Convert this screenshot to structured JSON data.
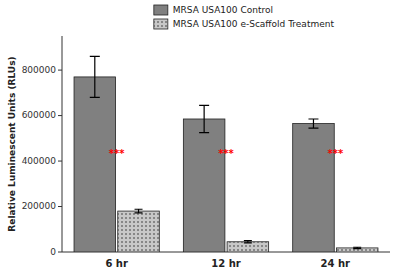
{
  "chart_data": {
    "type": "bar",
    "categories": [
      "6 hr",
      "12 hr",
      "24 hr"
    ],
    "series": [
      {
        "name": "MRSA USA100 Control",
        "color": "#808080",
        "values": [
          770000,
          585000,
          565000
        ],
        "errors": [
          90000,
          60000,
          20000
        ]
      },
      {
        "name": "MRSA USA100 e-Scaffold Treatment",
        "color": "#c8c8c8",
        "values": [
          180000,
          45000,
          18000
        ],
        "errors": [
          8000,
          5000,
          3000
        ]
      }
    ],
    "ylabel": "Relative Luminescent Units (RLUs)",
    "ylim": [
      0,
      950000
    ],
    "yticks": [
      0,
      200000,
      400000,
      600000,
      800000
    ],
    "annotations": [
      {
        "text": "***",
        "category": "6 hr",
        "y": 430000,
        "color": "#ff0000"
      },
      {
        "text": "***",
        "category": "12 hr",
        "y": 430000,
        "color": "#ff0000"
      },
      {
        "text": "***",
        "category": "24 hr",
        "y": 430000,
        "color": "#ff0000"
      }
    ],
    "legend": "top",
    "grid": false
  }
}
